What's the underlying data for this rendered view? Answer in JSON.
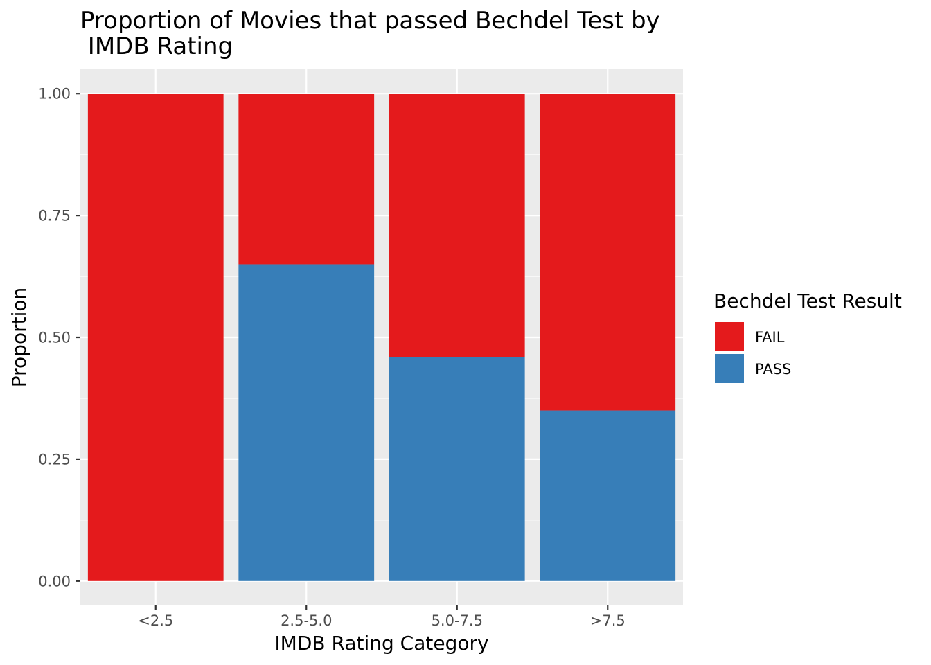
{
  "chart_data": {
    "type": "bar",
    "stacked": true,
    "title_lines": [
      "Proportion of Movies that passed Bechdel Test by",
      " IMDB Rating"
    ],
    "xlabel": "IMDB Rating Category",
    "ylabel": "Proportion",
    "categories": [
      "<2.5",
      "2.5-5.0",
      "5.0-7.5",
      ">7.5"
    ],
    "y_ticks": [
      "0.00",
      "0.25",
      "0.50",
      "0.75",
      "1.00"
    ],
    "ylim": [
      -0.05,
      1.05
    ],
    "series": [
      {
        "name": "PASS",
        "color": "#377EB8",
        "values": [
          0.0,
          0.65,
          0.46,
          0.35
        ]
      },
      {
        "name": "FAIL",
        "color": "#E41A1C",
        "values": [
          1.0,
          0.35,
          0.54,
          0.65
        ]
      }
    ],
    "legend": {
      "title": "Bechdel Test Result",
      "position": "right",
      "items": [
        {
          "label": "FAIL",
          "color": "#E41A1C"
        },
        {
          "label": "PASS",
          "color": "#377EB8"
        }
      ]
    },
    "grid": true,
    "panel_background": "#EBEBEB"
  }
}
